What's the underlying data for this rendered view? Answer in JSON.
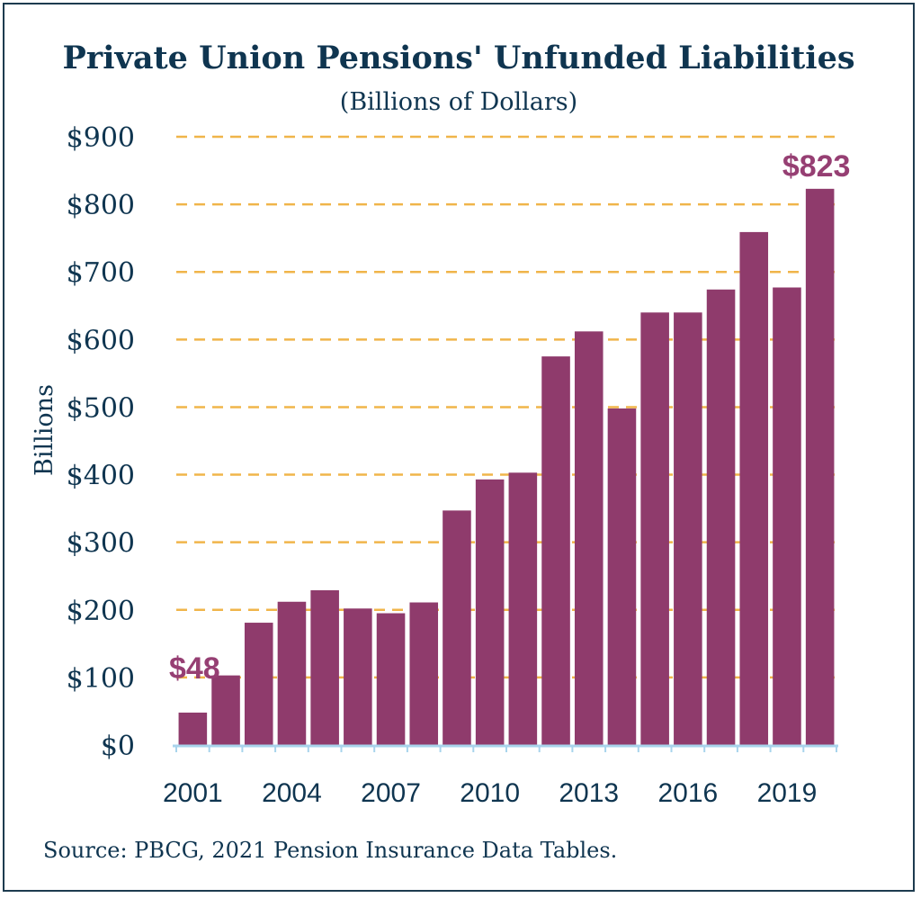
{
  "chart_data": {
    "type": "bar",
    "title": "Private Union Pensions' Unfunded Liabilities",
    "subtitle": "(Billions of Dollars)",
    "ylabel": "Billions",
    "xlabel": "",
    "source": "Source: PBCG, 2021 Pension Insurance Data Tables.",
    "categories": [
      "2001",
      "2002",
      "2003",
      "2004",
      "2005",
      "2006",
      "2007",
      "2008",
      "2009",
      "2010",
      "2011",
      "2012",
      "2013",
      "2014",
      "2015",
      "2016",
      "2017",
      "2018",
      "2019",
      "2020"
    ],
    "values": [
      48,
      103,
      181,
      212,
      229,
      202,
      195,
      211,
      347,
      393,
      403,
      575,
      612,
      498,
      640,
      640,
      674,
      759,
      677,
      823
    ],
    "x_tick_labels": [
      "2001",
      "2004",
      "2007",
      "2010",
      "2013",
      "2016",
      "2019"
    ],
    "y_tick_labels": [
      "$0",
      "$100",
      "$200",
      "$300",
      "$400",
      "$500",
      "$600",
      "$700",
      "$800",
      "$900"
    ],
    "ylim": [
      0,
      900
    ],
    "grid": true,
    "annotations": [
      {
        "category": "2001",
        "text": "$48"
      },
      {
        "category": "2020",
        "text": "$823"
      }
    ],
    "colors": {
      "bar": "#8f3b6c",
      "gridline": "#f0b54a",
      "annotation": "#963f73",
      "text": "#0f3550",
      "axis": "#a8d4ec"
    }
  }
}
